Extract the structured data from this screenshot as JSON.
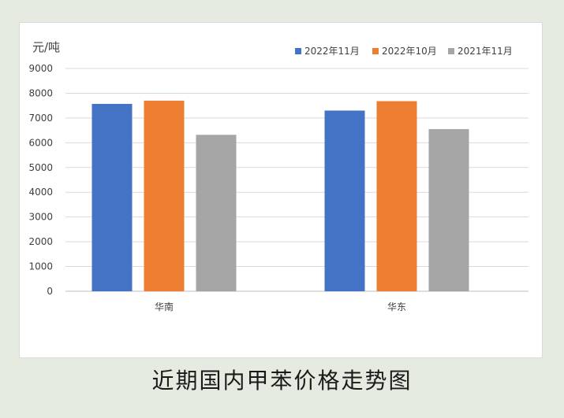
{
  "caption": "近期国内甲苯价格走势图",
  "chart_data": {
    "type": "bar",
    "unit_label": "元/吨",
    "categories": [
      "华南",
      "华东"
    ],
    "series": [
      {
        "name": "2022年11月",
        "color": "#4472c4",
        "values": [
          7570,
          7300
        ]
      },
      {
        "name": "2022年10月",
        "color": "#ed7d31",
        "values": [
          7700,
          7680
        ]
      },
      {
        "name": "2021年11月",
        "color": "#a5a5a5",
        "values": [
          6320,
          6550
        ]
      }
    ],
    "yticks": [
      "0",
      "1000",
      "2000",
      "3000",
      "4000",
      "5000",
      "6000",
      "7000",
      "8000",
      "9000"
    ],
    "ylim": [
      0,
      9000
    ],
    "grid": true,
    "legend_position": "top-right"
  }
}
